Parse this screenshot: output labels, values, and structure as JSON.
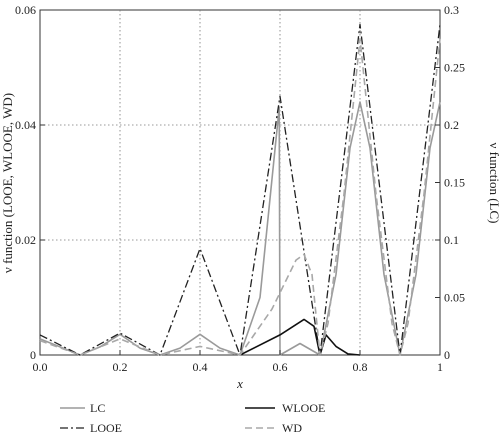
{
  "chart_data": {
    "type": "line",
    "xlabel": "x",
    "ylabel_left": "ν function (LOOE, WLOOE, WD)",
    "ylabel_right": "ν function (LC)",
    "xlim": [
      0,
      1
    ],
    "ylim_left": [
      0,
      0.06
    ],
    "ylim_right": [
      0,
      0.3
    ],
    "x_ticks": [
      "0.0",
      "0.2",
      "0.4",
      "0.6",
      "0.8",
      "1"
    ],
    "y_left_ticks": [
      "0",
      "0.02",
      "0.04",
      "0.06"
    ],
    "y_right_ticks": [
      "0",
      "0.05",
      "0.1",
      "0.15",
      "0.2",
      "0.25",
      "0.3"
    ],
    "grid": "dotted at x = 0.2, 0.4, 0.6, 0.8 and y = 0.02, 0.04",
    "legend_placement": "below plot",
    "series": [
      {
        "name": "LC",
        "axis": "right",
        "style": "solid",
        "color": "#9a9a9a",
        "points": [
          [
            0.0,
            0.014
          ],
          [
            0.05,
            0.007
          ],
          [
            0.1,
            0.0
          ],
          [
            0.15,
            0.007
          ],
          [
            0.2,
            0.018
          ],
          [
            0.25,
            0.006
          ],
          [
            0.3,
            0.0
          ],
          [
            0.35,
            0.006
          ],
          [
            0.4,
            0.018
          ],
          [
            0.45,
            0.006
          ],
          [
            0.5,
            0.0
          ],
          [
            0.55,
            0.05
          ],
          [
            0.598,
            0.215
          ],
          [
            0.6,
            0.0
          ],
          [
            0.65,
            0.01
          ],
          [
            0.7,
            0.0
          ],
          [
            0.74,
            0.07
          ],
          [
            0.775,
            0.18
          ],
          [
            0.8,
            0.22
          ],
          [
            0.825,
            0.18
          ],
          [
            0.86,
            0.07
          ],
          [
            0.9,
            0.0
          ],
          [
            0.94,
            0.07
          ],
          [
            0.975,
            0.18
          ],
          [
            1.0,
            0.22
          ]
        ]
      },
      {
        "name": "LOOE",
        "axis": "left",
        "style": "dash-dot",
        "color": "#222222",
        "points": [
          [
            0.0,
            0.0035
          ],
          [
            0.1,
            0.0
          ],
          [
            0.2,
            0.0038
          ],
          [
            0.3,
            0.0
          ],
          [
            0.4,
            0.0185
          ],
          [
            0.5,
            0.0
          ],
          [
            0.6,
            0.045
          ],
          [
            0.7,
            0.0
          ],
          [
            0.8,
            0.0575
          ],
          [
            0.9,
            0.0
          ],
          [
            1.0,
            0.0575
          ]
        ]
      },
      {
        "name": "WLOOE",
        "axis": "left",
        "style": "solid",
        "color": "#111111",
        "points": [
          [
            0.5,
            0.0
          ],
          [
            0.6,
            0.0035
          ],
          [
            0.66,
            0.0062
          ],
          [
            0.685,
            0.005
          ],
          [
            0.7,
            0.0
          ],
          [
            0.715,
            0.0035
          ],
          [
            0.74,
            0.0015
          ],
          [
            0.77,
            0.0002
          ],
          [
            0.8,
            0.0
          ]
        ]
      },
      {
        "name": "WD",
        "axis": "left",
        "style": "dashed",
        "color": "#a8a8a8",
        "points": [
          [
            0.0,
            0.0025
          ],
          [
            0.1,
            0.0
          ],
          [
            0.2,
            0.0028
          ],
          [
            0.3,
            0.0
          ],
          [
            0.4,
            0.0015
          ],
          [
            0.5,
            0.0
          ],
          [
            0.58,
            0.008
          ],
          [
            0.64,
            0.0165
          ],
          [
            0.66,
            0.0175
          ],
          [
            0.68,
            0.014
          ],
          [
            0.7,
            0.0
          ],
          [
            0.72,
            0.0055
          ],
          [
            0.76,
            0.028
          ],
          [
            0.8,
            0.055
          ],
          [
            0.84,
            0.028
          ],
          [
            0.88,
            0.0055
          ],
          [
            0.9,
            0.0
          ],
          [
            0.92,
            0.0055
          ],
          [
            0.96,
            0.028
          ],
          [
            1.0,
            0.055
          ]
        ]
      }
    ]
  }
}
